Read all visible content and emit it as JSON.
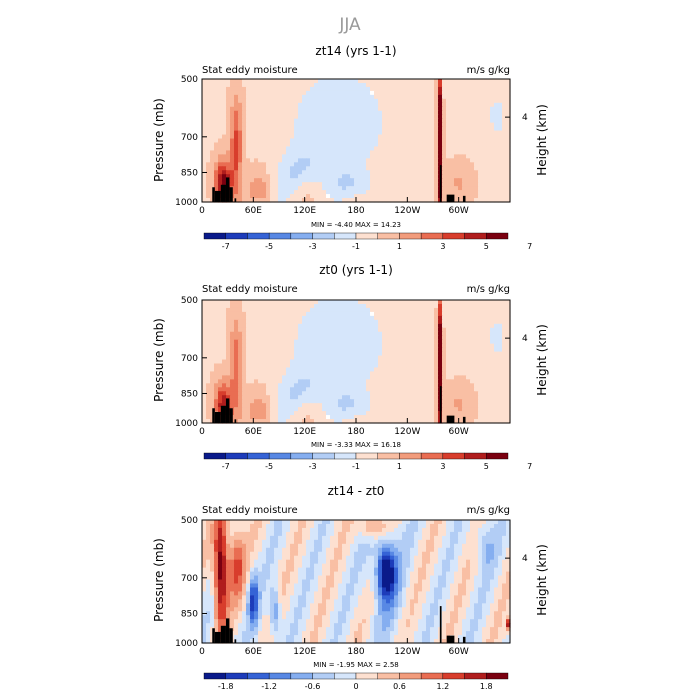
{
  "figure": {
    "title": "JJA",
    "colors": {
      "pos": [
        "#fde0d0",
        "#f9bfa4",
        "#f29c7c",
        "#e96d52",
        "#d83d2c",
        "#b01d1d",
        "#7a0010"
      ],
      "neg": [
        "#d6e6fb",
        "#b2cdf5",
        "#85aef0",
        "#5888e4",
        "#3563d6",
        "#1d3cba",
        "#0a1a8a"
      ],
      "terrain": "#000000"
    }
  },
  "chart_data": [
    {
      "type": "heatmap",
      "title": "zt14 (yrs 1-1)",
      "left_label": "Stat eddy moisture",
      "right_label": "m/s g/kg",
      "ylabel": "Pressure (mb)",
      "ylabel_right": "Height (km)",
      "yticks": [
        "500",
        "700",
        "850",
        "1000"
      ],
      "yticks_right": [
        "4"
      ],
      "xticks": [
        "0",
        "60E",
        "120E",
        "180",
        "120W",
        "60W"
      ],
      "stats": "MIN =  -4.40   MAX =  14.23",
      "colorbar_labels": [
        "-7",
        "-5",
        "-3",
        "-1",
        "1",
        "3",
        "5",
        "7"
      ],
      "field": "total_a"
    },
    {
      "type": "heatmap",
      "title": "zt0 (yrs 1-1)",
      "left_label": "Stat eddy moisture",
      "right_label": "m/s g/kg",
      "ylabel": "Pressure (mb)",
      "ylabel_right": "Height (km)",
      "yticks": [
        "500",
        "700",
        "850",
        "1000"
      ],
      "yticks_right": [
        "4"
      ],
      "xticks": [
        "0",
        "60E",
        "120E",
        "180",
        "120W",
        "60W"
      ],
      "stats": "MIN =  -3.33   MAX =  16.18",
      "colorbar_labels": [
        "-7",
        "-5",
        "-3",
        "-1",
        "1",
        "3",
        "5",
        "7"
      ],
      "field": "total_b"
    },
    {
      "type": "heatmap",
      "title": "zt14 - zt0",
      "left_label": "Stat eddy moisture",
      "right_label": "m/s g/kg",
      "ylabel": "Pressure (mb)",
      "ylabel_right": "Height (km)",
      "yticks": [
        "500",
        "700",
        "850",
        "1000"
      ],
      "yticks_right": [
        "4"
      ],
      "xticks": [
        "0",
        "60E",
        "120E",
        "180",
        "120W",
        "60W"
      ],
      "stats": "MIN =  -1.95   MAX =   2.58",
      "colorbar_labels": [
        "-1.8",
        "-1.2",
        "-0.6",
        "0",
        "0.6",
        "1.2",
        "1.8"
      ],
      "field": "diff"
    }
  ]
}
